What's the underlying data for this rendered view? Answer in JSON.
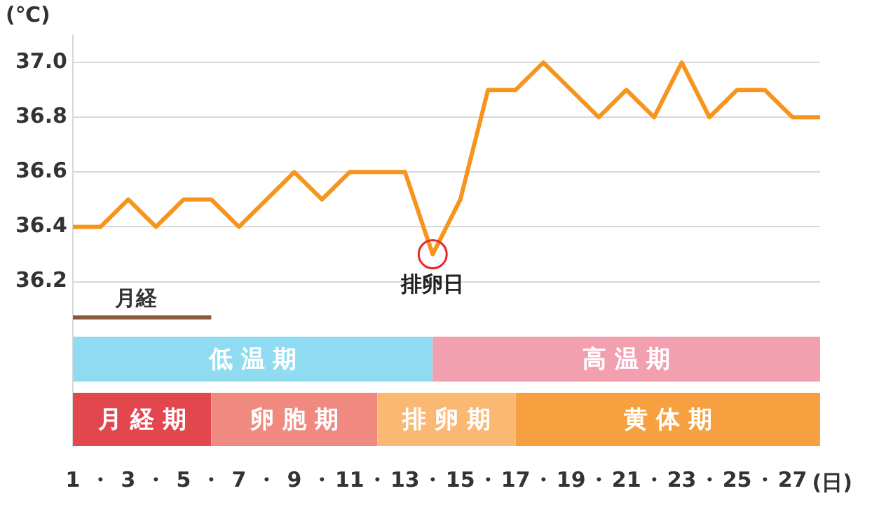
{
  "chart_data": {
    "type": "line",
    "ylabel": "(℃)",
    "xlabel": "(日)",
    "x": [
      1,
      2,
      3,
      4,
      5,
      6,
      7,
      8,
      9,
      10,
      11,
      12,
      13,
      14,
      15,
      16,
      17,
      18,
      19,
      20,
      21,
      22,
      23,
      24,
      25,
      26,
      27,
      28
    ],
    "series": [
      {
        "type": "line",
        "name": "月経",
        "color": "#8b5a3c",
        "x": [
          1,
          6
        ],
        "values": [
          36.07,
          36.07
        ]
      },
      {
        "color": "#f7941d",
        "values": [
          36.4,
          36.4,
          36.5,
          36.4,
          36.5,
          36.5,
          36.4,
          36.5,
          36.6,
          36.5,
          36.6,
          36.6,
          36.6,
          36.3,
          36.5,
          36.9,
          36.9,
          37.0,
          36.9,
          36.8,
          36.9,
          36.8,
          37.0,
          36.8,
          36.9,
          36.9,
          36.8,
          36.8
        ]
      }
    ],
    "xlim": [
      1,
      28
    ],
    "xticks": [
      1,
      {
        "value": 2,
        "label": "・"
      },
      3,
      {
        "value": 4,
        "label": "・"
      },
      5,
      {
        "value": 6,
        "label": "・"
      },
      7,
      {
        "value": 8,
        "label": "・"
      },
      9,
      {
        "value": 10,
        "label": "・"
      },
      11,
      {
        "value": 12,
        "label": "・"
      },
      13,
      {
        "value": 14,
        "label": "・"
      },
      15,
      {
        "value": 16,
        "label": "・"
      },
      17,
      {
        "value": 18,
        "label": "・"
      },
      19,
      {
        "value": 20,
        "label": "・"
      },
      21,
      {
        "value": 22,
        "label": "・"
      },
      23,
      {
        "value": 24,
        "label": "・"
      },
      25,
      {
        "value": 26,
        "label": "・"
      },
      27
    ],
    "ylim": [
      35.6,
      37.1
    ],
    "yticks": [
      36.2,
      36.4,
      36.6,
      36.8,
      {
        "value": 37,
        "label": "37.0"
      }
    ],
    "grid": "y",
    "legend": false,
    "marker": "none",
    "line_style": "solid",
    "annotations": [
      {
        "text": "排卵日",
        "x": 14,
        "y": 36.3
      }
    ],
    "bands": [
      {
        "axis": "x",
        "from": 1,
        "to": 14,
        "label": "低温期",
        "color": "#8fdcf2"
      },
      {
        "axis": "x",
        "from": 14,
        "to": 28,
        "label": "高温期",
        "color": "#f2a0b0"
      },
      {
        "axis": "x",
        "from": 1,
        "to": 6,
        "label": "月経期",
        "color": "#e2474e"
      },
      {
        "axis": "x",
        "from": 6,
        "to": 12,
        "label": "卵胞期",
        "color": "#f08a80"
      },
      {
        "axis": "x",
        "from": 12,
        "to": 17,
        "label": "排卵期",
        "color": "#fbb872"
      },
      {
        "axis": "x",
        "from": 17,
        "to": 28,
        "label": "黄体期",
        "color": "#f7a040"
      }
    ]
  }
}
